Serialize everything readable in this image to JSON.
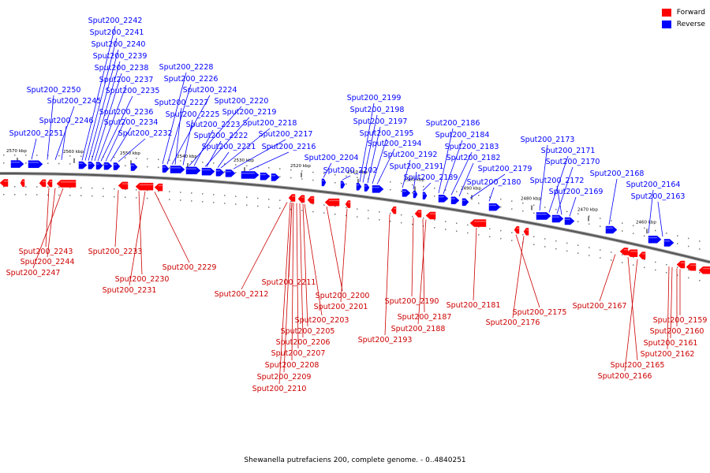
{
  "legend": {
    "forward": "Forward",
    "reverse": "Reverse",
    "forward_color": "#ff0000",
    "reverse_color": "#0000ff"
  },
  "caption": "Shewanella putrefaciens 200, complete genome. - 0..4840251",
  "ticks": [
    "2570 kbp",
    "2560 kbp",
    "2550 kbp",
    "2540 kbp",
    "2530 kbp",
    "2520 kbp",
    "2510 kbp",
    "2500 kbp",
    "2490 kbp",
    "2480 kbp",
    "2470 kbp",
    "2460 kbp"
  ],
  "reverse_genes": [
    "Sput200_2242",
    "Sput200_2241",
    "Sput200_2240",
    "Sput200_2239",
    "Sput200_2238",
    "Sput200_2237",
    "Sput200_2235",
    "Sput200_2236",
    "Sput200_2234",
    "Sput200_2232",
    "Sput200_2250",
    "Sput200_2245",
    "Sput200_2246",
    "Sput200_2251",
    "Sput200_2228",
    "Sput200_2226",
    "Sput200_2224",
    "Sput200_2227",
    "Sput200_2220",
    "Sput200_2225",
    "Sput200_2219",
    "Sput200_2223",
    "Sput200_2218",
    "Sput200_2222",
    "Sput200_2217",
    "Sput200_2221",
    "Sput200_2216",
    "Sput200_2204",
    "Sput200_2202",
    "Sput200_2199",
    "Sput200_2198",
    "Sput200_2197",
    "Sput200_2195",
    "Sput200_2194",
    "Sput200_2192",
    "Sput200_2191",
    "Sput200_2189",
    "Sput200_2186",
    "Sput200_2184",
    "Sput200_2183",
    "Sput200_2182",
    "Sput200_2179",
    "Sput200_2180",
    "Sput200_2173",
    "Sput200_2171",
    "Sput200_2170",
    "Sput200_2172",
    "Sput200_2169",
    "Sput200_2168",
    "Sput200_2164",
    "Sput200_2163"
  ],
  "forward_genes": [
    "Sput200_2243",
    "Sput200_2244",
    "Sput200_2247",
    "Sput200_2233",
    "Sput200_2230",
    "Sput200_2231",
    "Sput200_2229",
    "Sput200_2212",
    "Sput200_2211",
    "Sput200_2200",
    "Sput200_2201",
    "Sput200_2203",
    "Sput200_2205",
    "Sput200_2206",
    "Sput200_2207",
    "Sput200_2208",
    "Sput200_2209",
    "Sput200_2210",
    "Sput200_2190",
    "Sput200_2187",
    "Sput200_2188",
    "Sput200_2193",
    "Sput200_2181",
    "Sput200_2175",
    "Sput200_2176",
    "Sput200_2167",
    "Sput200_2165",
    "Sput200_2166",
    "Sput200_2159",
    "Sput200_2160",
    "Sput200_2161",
    "Sput200_2162"
  ]
}
